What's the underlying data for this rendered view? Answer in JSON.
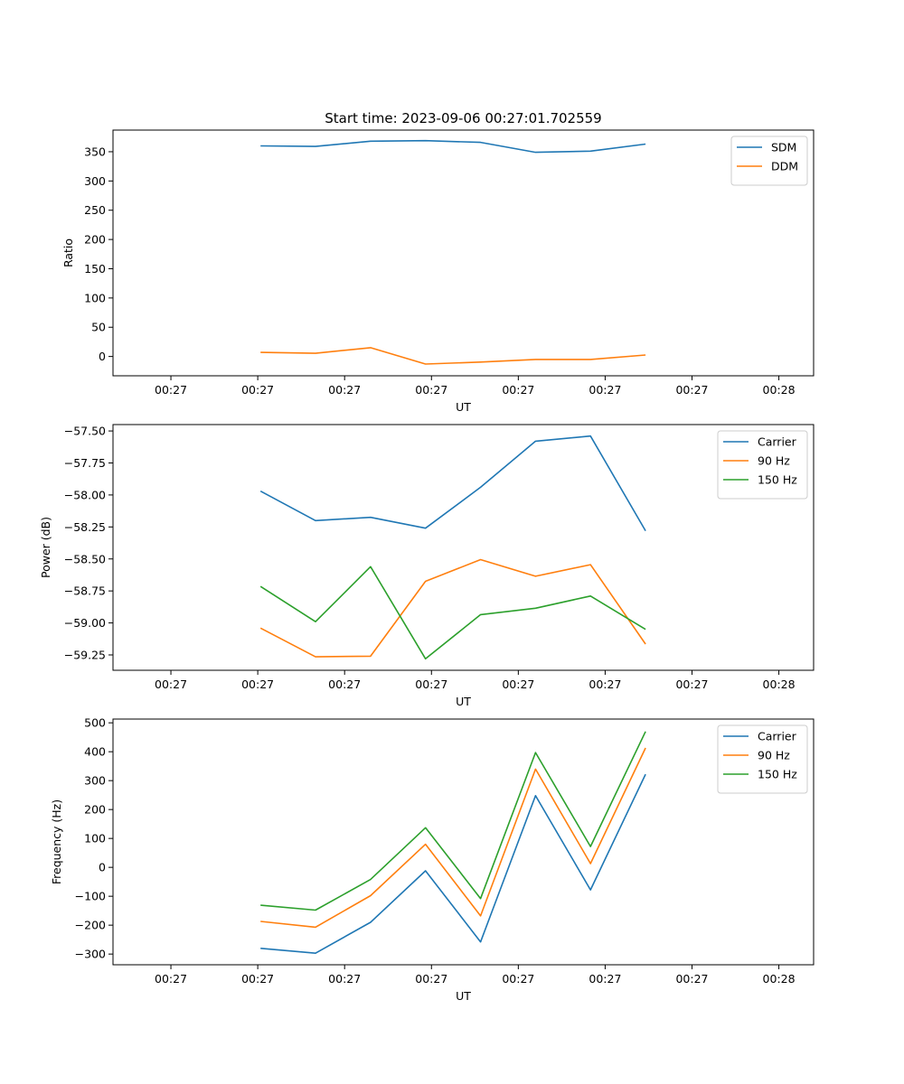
{
  "title": "Start time: 2023-09-06 00:27:01.702559",
  "colors": {
    "c0": "#1f77b4",
    "c1": "#ff7f0e",
    "c2": "#2ca02c"
  },
  "x_tick_labels": [
    "00:27",
    "00:27",
    "00:27",
    "00:27",
    "00:27",
    "00:27",
    "00:27",
    "00:28"
  ],
  "chart_data": [
    {
      "type": "line",
      "title": "Start time: 2023-09-06 00:27:01.702559",
      "xlabel": "UT",
      "ylabel": "Ratio",
      "x": [
        1,
        2,
        3,
        4,
        5,
        6,
        7,
        8
      ],
      "xlim": [
        0,
        9.2
      ],
      "ylim": [
        -33,
        387
      ],
      "yticks": [
        0,
        50,
        100,
        150,
        200,
        250,
        300,
        350
      ],
      "ytick_labels": [
        "0",
        "50",
        "100",
        "150",
        "200",
        "250",
        "300",
        "350"
      ],
      "legend": "top-right",
      "series": [
        {
          "name": "SDM",
          "color": "#1f77b4",
          "values": [
            360,
            359,
            368,
            369,
            366,
            349,
            351,
            363
          ]
        },
        {
          "name": "DDM",
          "color": "#ff7f0e",
          "values": [
            7,
            5.5,
            15,
            -13,
            -9.5,
            -5,
            -5,
            2.5
          ]
        }
      ]
    },
    {
      "type": "line",
      "xlabel": "UT",
      "ylabel": "Power (dB)",
      "x": [
        1,
        2,
        3,
        4,
        5,
        6,
        7,
        8
      ],
      "xlim": [
        0,
        9.2
      ],
      "ylim": [
        -59.37,
        -57.45
      ],
      "yticks": [
        -59.25,
        -59.0,
        -58.75,
        -58.5,
        -58.25,
        -58.0,
        -57.75,
        -57.5
      ],
      "ytick_labels": [
        "−59.25",
        "−59.00",
        "−58.75",
        "−58.50",
        "−58.25",
        "−58.00",
        "−57.75",
        "−57.50"
      ],
      "legend": "top-right",
      "series": [
        {
          "name": "Carrier",
          "color": "#1f77b4",
          "values": [
            -57.97,
            -58.2,
            -58.175,
            -58.26,
            -57.94,
            -57.58,
            -57.54,
            -58.28
          ]
        },
        {
          "name": "90 Hz",
          "color": "#ff7f0e",
          "values": [
            -59.04,
            -59.265,
            -59.26,
            -58.675,
            -58.505,
            -58.635,
            -58.545,
            -59.165
          ]
        },
        {
          "name": "150 Hz",
          "color": "#2ca02c",
          "values": [
            -58.715,
            -58.99,
            -58.56,
            -59.28,
            -58.935,
            -58.885,
            -58.79,
            -59.05
          ]
        }
      ]
    },
    {
      "type": "line",
      "xlabel": "UT",
      "ylabel": "Frequency (Hz)",
      "x": [
        1,
        2,
        3,
        4,
        5,
        6,
        7,
        8
      ],
      "xlim": [
        0,
        9.2
      ],
      "ylim": [
        -337,
        513
      ],
      "yticks": [
        -300,
        -200,
        -100,
        0,
        100,
        200,
        300,
        400,
        500
      ],
      "ytick_labels": [
        "−300",
        "−200",
        "−100",
        "0",
        "100",
        "200",
        "300",
        "400",
        "500"
      ],
      "legend": "top-right",
      "series": [
        {
          "name": "Carrier",
          "color": "#1f77b4",
          "values": [
            -280,
            -297,
            -190,
            -12,
            -258,
            248,
            -78,
            322
          ]
        },
        {
          "name": "90 Hz",
          "color": "#ff7f0e",
          "values": [
            -187,
            -207,
            -98,
            80,
            -168,
            340,
            13,
            413
          ]
        },
        {
          "name": "150 Hz",
          "color": "#2ca02c",
          "values": [
            -131,
            -148,
            -42,
            137,
            -108,
            397,
            72,
            470
          ]
        }
      ]
    }
  ]
}
